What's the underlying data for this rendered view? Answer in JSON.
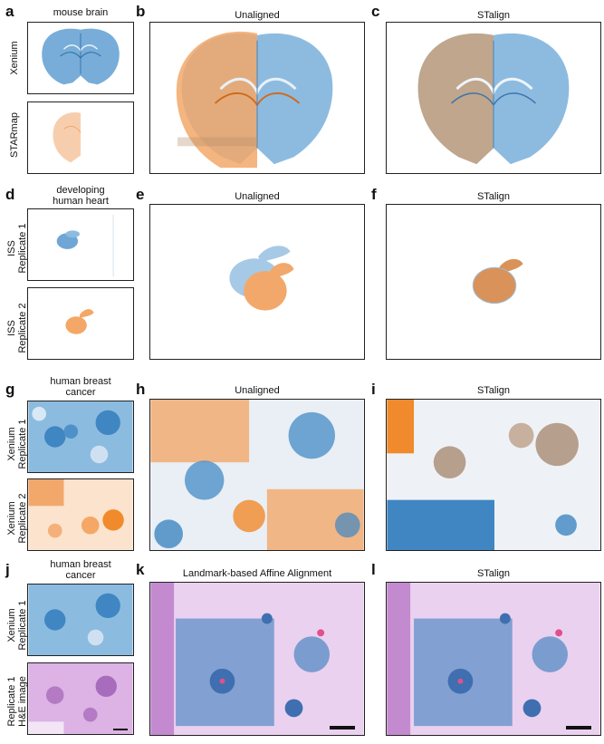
{
  "figure": {
    "panel_letters": [
      "a",
      "b",
      "c",
      "d",
      "e",
      "f",
      "g",
      "h",
      "i",
      "j",
      "k",
      "l"
    ],
    "rows": [
      {
        "row_title": "mouse brain",
        "row_labels": [
          "Xenium",
          "STARmap"
        ],
        "panel_titles": [
          "Unaligned",
          "STalign"
        ]
      },
      {
        "row_title": "developing\nhuman heart",
        "row_labels": [
          "ISS\nReplicate 1",
          "ISS\nReplicate 2"
        ],
        "panel_titles": [
          "Unaligned",
          "STalign"
        ]
      },
      {
        "row_title": "human breast\ncancer",
        "row_labels": [
          "Xenium\nReplicate 1",
          "Xenium\nReplicate 2"
        ],
        "panel_titles": [
          "Unaligned",
          "STalign"
        ]
      },
      {
        "row_title": "human breast\ncancer",
        "row_labels": [
          "Xenium\nReplicate 1",
          "Replicate 1\nH&E image"
        ],
        "panel_titles": [
          "Landmark-based Affine Alignment",
          "STalign"
        ]
      }
    ],
    "colors": {
      "blue": "#3f86c2",
      "orange": "#f08a2c",
      "light_orange": "#f6c9a4",
      "he_purple": "#c48ad0",
      "overlap_brown": "#c27f3e",
      "frame": "#222222"
    }
  }
}
